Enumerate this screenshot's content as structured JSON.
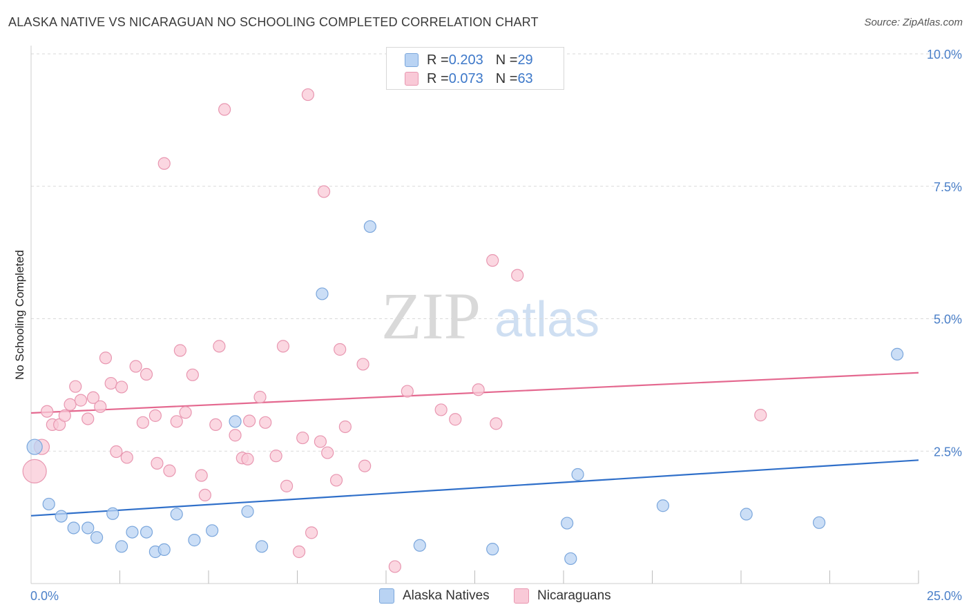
{
  "title": "ALASKA NATIVE VS NICARAGUAN NO SCHOOLING COMPLETED CORRELATION CHART",
  "source": "Source: ZipAtlas.com",
  "watermark": {
    "zip": "ZIP",
    "atlas": "atlas"
  },
  "colors": {
    "blue_fill": "#b9d3f3",
    "blue_stroke": "#7aa6dc",
    "blue_line": "#2f6fc9",
    "pink_fill": "#f9c9d7",
    "pink_stroke": "#e896b0",
    "pink_line": "#e4688f",
    "tick_text": "#4a7fc8",
    "grid": "#d9d9d9"
  },
  "legend": {
    "rows": [
      {
        "r_label": "R = ",
        "r_value": "0.203",
        "n_label": "N = ",
        "n_value": "29"
      },
      {
        "r_label": "R = ",
        "r_value": "0.073",
        "n_label": "N = ",
        "n_value": "63"
      }
    ]
  },
  "bottom_legend": {
    "series1": "Alaska Natives",
    "series2": "Nicaraguans"
  },
  "chart_data": {
    "type": "scatter",
    "title": "ALASKA NATIVE VS NICARAGUAN NO SCHOOLING COMPLETED CORRELATION CHART",
    "xlabel": "",
    "ylabel": "No Schooling Completed",
    "xlim": [
      0,
      25
    ],
    "ylim": [
      0,
      10
    ],
    "x_tick_labels": [
      "0.0%",
      "25.0%"
    ],
    "y_ticks": [
      2.5,
      5.0,
      7.5,
      10.0
    ],
    "y_tick_labels": [
      "2.5%",
      "5.0%",
      "7.5%",
      "10.0%"
    ],
    "x_minor_ticks": [
      2.5,
      5.0,
      7.5,
      10.0,
      12.5,
      15.0,
      17.5,
      20.0,
      22.5,
      25.0
    ],
    "grid": "horizontal dashed",
    "series": [
      {
        "name": "Alaska Natives",
        "color": "blue",
        "r": 0.203,
        "n": 29,
        "trend": {
          "x": [
            0,
            25
          ],
          "y": [
            1.28,
            2.33
          ]
        },
        "points": [
          {
            "x": 0.1,
            "y": 2.58,
            "size": 1.3
          },
          {
            "x": 0.5,
            "y": 1.5
          },
          {
            "x": 0.85,
            "y": 1.27
          },
          {
            "x": 1.2,
            "y": 1.05
          },
          {
            "x": 1.6,
            "y": 1.05
          },
          {
            "x": 1.85,
            "y": 0.87
          },
          {
            "x": 2.3,
            "y": 1.32
          },
          {
            "x": 2.55,
            "y": 0.7
          },
          {
            "x": 2.85,
            "y": 0.97
          },
          {
            "x": 3.25,
            "y": 0.97
          },
          {
            "x": 3.5,
            "y": 0.6
          },
          {
            "x": 3.75,
            "y": 0.64
          },
          {
            "x": 4.1,
            "y": 1.31
          },
          {
            "x": 4.6,
            "y": 0.82
          },
          {
            "x": 5.1,
            "y": 1.0
          },
          {
            "x": 5.75,
            "y": 3.06
          },
          {
            "x": 6.1,
            "y": 1.36
          },
          {
            "x": 6.5,
            "y": 0.7
          },
          {
            "x": 8.2,
            "y": 5.47
          },
          {
            "x": 9.55,
            "y": 6.74
          },
          {
            "x": 10.95,
            "y": 0.72
          },
          {
            "x": 13.0,
            "y": 0.65
          },
          {
            "x": 15.1,
            "y": 1.14
          },
          {
            "x": 15.4,
            "y": 2.06
          },
          {
            "x": 15.2,
            "y": 0.47
          },
          {
            "x": 17.8,
            "y": 1.47
          },
          {
            "x": 20.15,
            "y": 1.31
          },
          {
            "x": 22.2,
            "y": 1.15
          },
          {
            "x": 24.4,
            "y": 4.33
          }
        ]
      },
      {
        "name": "Nicaraguans",
        "color": "pink",
        "r": 0.073,
        "n": 63,
        "trend": {
          "x": [
            0,
            25
          ],
          "y": [
            3.22,
            3.98
          ]
        },
        "points": [
          {
            "x": 0.1,
            "y": 2.12,
            "size": 2.0
          },
          {
            "x": 0.3,
            "y": 2.58,
            "size": 1.3
          },
          {
            "x": 0.45,
            "y": 3.25
          },
          {
            "x": 0.6,
            "y": 3.0
          },
          {
            "x": 0.8,
            "y": 3.0
          },
          {
            "x": 0.95,
            "y": 3.17
          },
          {
            "x": 1.1,
            "y": 3.38
          },
          {
            "x": 1.25,
            "y": 3.72
          },
          {
            "x": 1.4,
            "y": 3.46
          },
          {
            "x": 1.6,
            "y": 3.11
          },
          {
            "x": 1.75,
            "y": 3.51
          },
          {
            "x": 1.95,
            "y": 3.34
          },
          {
            "x": 2.1,
            "y": 4.26
          },
          {
            "x": 2.25,
            "y": 3.78
          },
          {
            "x": 2.4,
            "y": 2.49
          },
          {
            "x": 2.55,
            "y": 3.71
          },
          {
            "x": 2.7,
            "y": 2.38
          },
          {
            "x": 2.95,
            "y": 4.1
          },
          {
            "x": 3.15,
            "y": 3.04
          },
          {
            "x": 3.25,
            "y": 3.95
          },
          {
            "x": 3.5,
            "y": 3.17
          },
          {
            "x": 3.55,
            "y": 2.27
          },
          {
            "x": 3.75,
            "y": 7.93
          },
          {
            "x": 3.9,
            "y": 2.13
          },
          {
            "x": 4.1,
            "y": 3.06
          },
          {
            "x": 4.2,
            "y": 4.4
          },
          {
            "x": 4.35,
            "y": 3.23
          },
          {
            "x": 4.55,
            "y": 3.94
          },
          {
            "x": 4.8,
            "y": 2.04
          },
          {
            "x": 4.9,
            "y": 1.67
          },
          {
            "x": 5.2,
            "y": 3.0
          },
          {
            "x": 5.3,
            "y": 4.48
          },
          {
            "x": 5.45,
            "y": 8.95
          },
          {
            "x": 5.75,
            "y": 2.8
          },
          {
            "x": 5.95,
            "y": 2.37
          },
          {
            "x": 6.1,
            "y": 2.35
          },
          {
            "x": 6.15,
            "y": 3.07
          },
          {
            "x": 6.45,
            "y": 3.52
          },
          {
            "x": 6.6,
            "y": 3.04
          },
          {
            "x": 6.9,
            "y": 2.41
          },
          {
            "x": 7.1,
            "y": 4.48
          },
          {
            "x": 7.2,
            "y": 1.84
          },
          {
            "x": 7.55,
            "y": 0.6
          },
          {
            "x": 7.65,
            "y": 2.75
          },
          {
            "x": 7.9,
            "y": 0.96
          },
          {
            "x": 7.8,
            "y": 9.23
          },
          {
            "x": 8.15,
            "y": 2.68
          },
          {
            "x": 8.25,
            "y": 7.4
          },
          {
            "x": 8.35,
            "y": 2.47
          },
          {
            "x": 8.6,
            "y": 1.95
          },
          {
            "x": 8.7,
            "y": 4.42
          },
          {
            "x": 8.85,
            "y": 2.96
          },
          {
            "x": 9.35,
            "y": 4.14
          },
          {
            "x": 9.4,
            "y": 2.22
          },
          {
            "x": 10.25,
            "y": 0.32
          },
          {
            "x": 10.6,
            "y": 3.63
          },
          {
            "x": 11.55,
            "y": 3.28
          },
          {
            "x": 11.95,
            "y": 3.1
          },
          {
            "x": 12.6,
            "y": 3.66
          },
          {
            "x": 13.0,
            "y": 6.1
          },
          {
            "x": 13.1,
            "y": 3.02
          },
          {
            "x": 13.7,
            "y": 5.82
          },
          {
            "x": 20.55,
            "y": 3.18
          }
        ]
      }
    ]
  }
}
